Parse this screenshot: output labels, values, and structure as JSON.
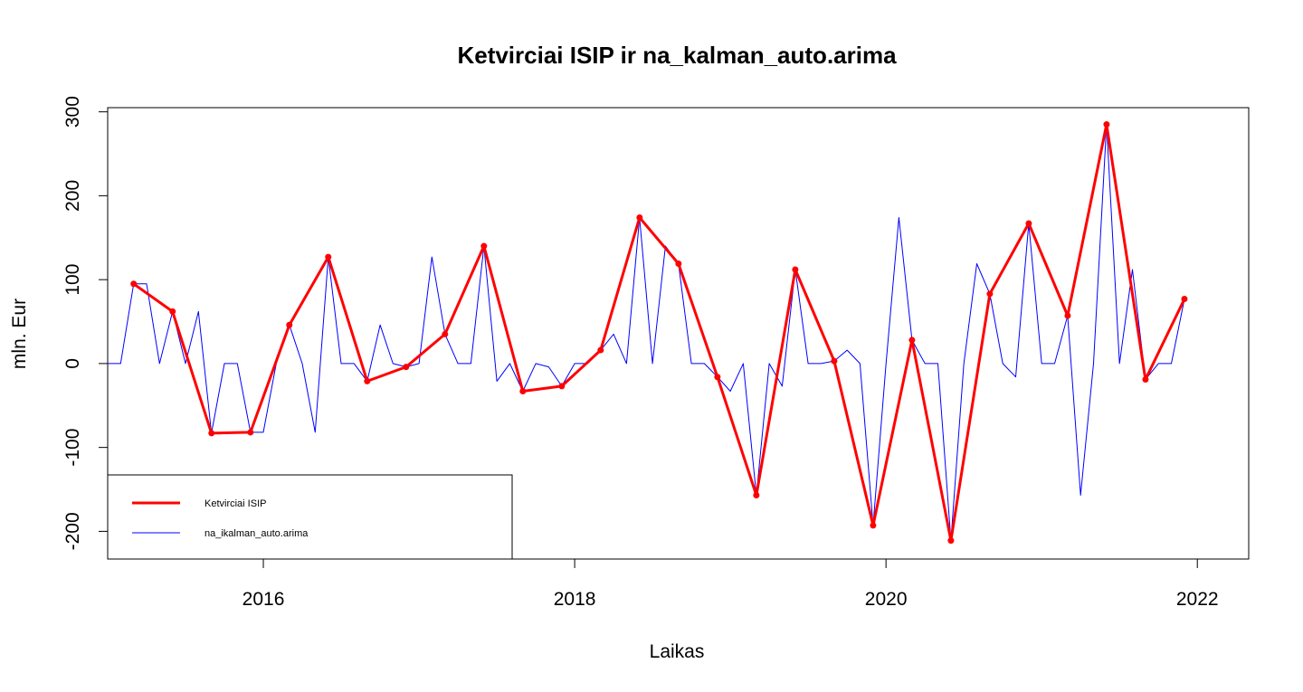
{
  "chart_data": {
    "type": "line",
    "title": "Ketvirciai ISIP ir na_kalman_auto.arima",
    "xlabel": "Laikas",
    "ylabel": "mln. Eur",
    "xlim": [
      2015.0,
      2022.33
    ],
    "ylim": [
      -233,
      305
    ],
    "x_ticks": [
      2016,
      2018,
      2020,
      2022
    ],
    "y_ticks": [
      -200,
      -100,
      0,
      100,
      200,
      300
    ],
    "grid": false,
    "legend_position": "bottom-left",
    "series": [
      {
        "name": "Ketvirciai ISIP",
        "color": "#ff0000",
        "style": "line+points",
        "x": [
          2015.167,
          2015.417,
          2015.667,
          2015.917,
          2016.167,
          2016.417,
          2016.667,
          2016.917,
          2017.167,
          2017.417,
          2017.667,
          2017.917,
          2018.167,
          2018.417,
          2018.667,
          2018.917,
          2019.167,
          2019.417,
          2019.667,
          2019.917,
          2020.167,
          2020.417,
          2020.667,
          2020.917,
          2021.167,
          2021.417,
          2021.667,
          2021.917
        ],
        "values": [
          95,
          62,
          -83,
          -82,
          46,
          127,
          -21,
          -4,
          35,
          140,
          -33,
          -27,
          16,
          174,
          119,
          -16,
          -157,
          112,
          3,
          -193,
          28,
          -211,
          83,
          167,
          57,
          285,
          -19,
          77
        ]
      },
      {
        "name": "na_ikalman_auto.arima",
        "color": "#0000ff",
        "style": "line",
        "x": [
          2015.0,
          2015.083,
          2015.167,
          2015.25,
          2015.333,
          2015.417,
          2015.5,
          2015.583,
          2015.667,
          2015.75,
          2015.833,
          2015.917,
          2016.0,
          2016.083,
          2016.167,
          2016.25,
          2016.333,
          2016.417,
          2016.5,
          2016.583,
          2016.667,
          2016.75,
          2016.833,
          2016.917,
          2017.0,
          2017.083,
          2017.167,
          2017.25,
          2017.333,
          2017.417,
          2017.5,
          2017.583,
          2017.667,
          2017.75,
          2017.833,
          2017.917,
          2018.0,
          2018.083,
          2018.167,
          2018.25,
          2018.333,
          2018.417,
          2018.5,
          2018.583,
          2018.667,
          2018.75,
          2018.833,
          2018.917,
          2019.0,
          2019.083,
          2019.167,
          2019.25,
          2019.333,
          2019.417,
          2019.5,
          2019.583,
          2019.667,
          2019.75,
          2019.833,
          2019.917,
          2020.0,
          2020.083,
          2020.167,
          2020.25,
          2020.333,
          2020.417,
          2020.5,
          2020.583,
          2020.667,
          2020.75,
          2020.833,
          2020.917,
          2021.0,
          2021.083,
          2021.167,
          2021.25,
          2021.333,
          2021.417,
          2021.5,
          2021.583,
          2021.667,
          2021.75,
          2021.833,
          2021.917
        ],
        "values": [
          0,
          0,
          95,
          95,
          0,
          62,
          0,
          62,
          -83,
          0,
          0,
          -82,
          -82,
          0,
          46,
          0,
          -82,
          127,
          0,
          0,
          -21,
          46,
          0,
          -4,
          0,
          127,
          35,
          0,
          0,
          140,
          -21,
          0,
          -33,
          0,
          -4,
          -27,
          0,
          0,
          16,
          35,
          0,
          174,
          0,
          140,
          119,
          0,
          0,
          -16,
          -33,
          0,
          -157,
          0,
          -27,
          112,
          0,
          0,
          3,
          16,
          0,
          -193,
          0,
          174,
          28,
          0,
          0,
          -211,
          0,
          119,
          83,
          0,
          -16,
          167,
          0,
          0,
          57,
          -157,
          0,
          285,
          0,
          112,
          -19,
          0,
          0,
          77
        ]
      }
    ]
  }
}
